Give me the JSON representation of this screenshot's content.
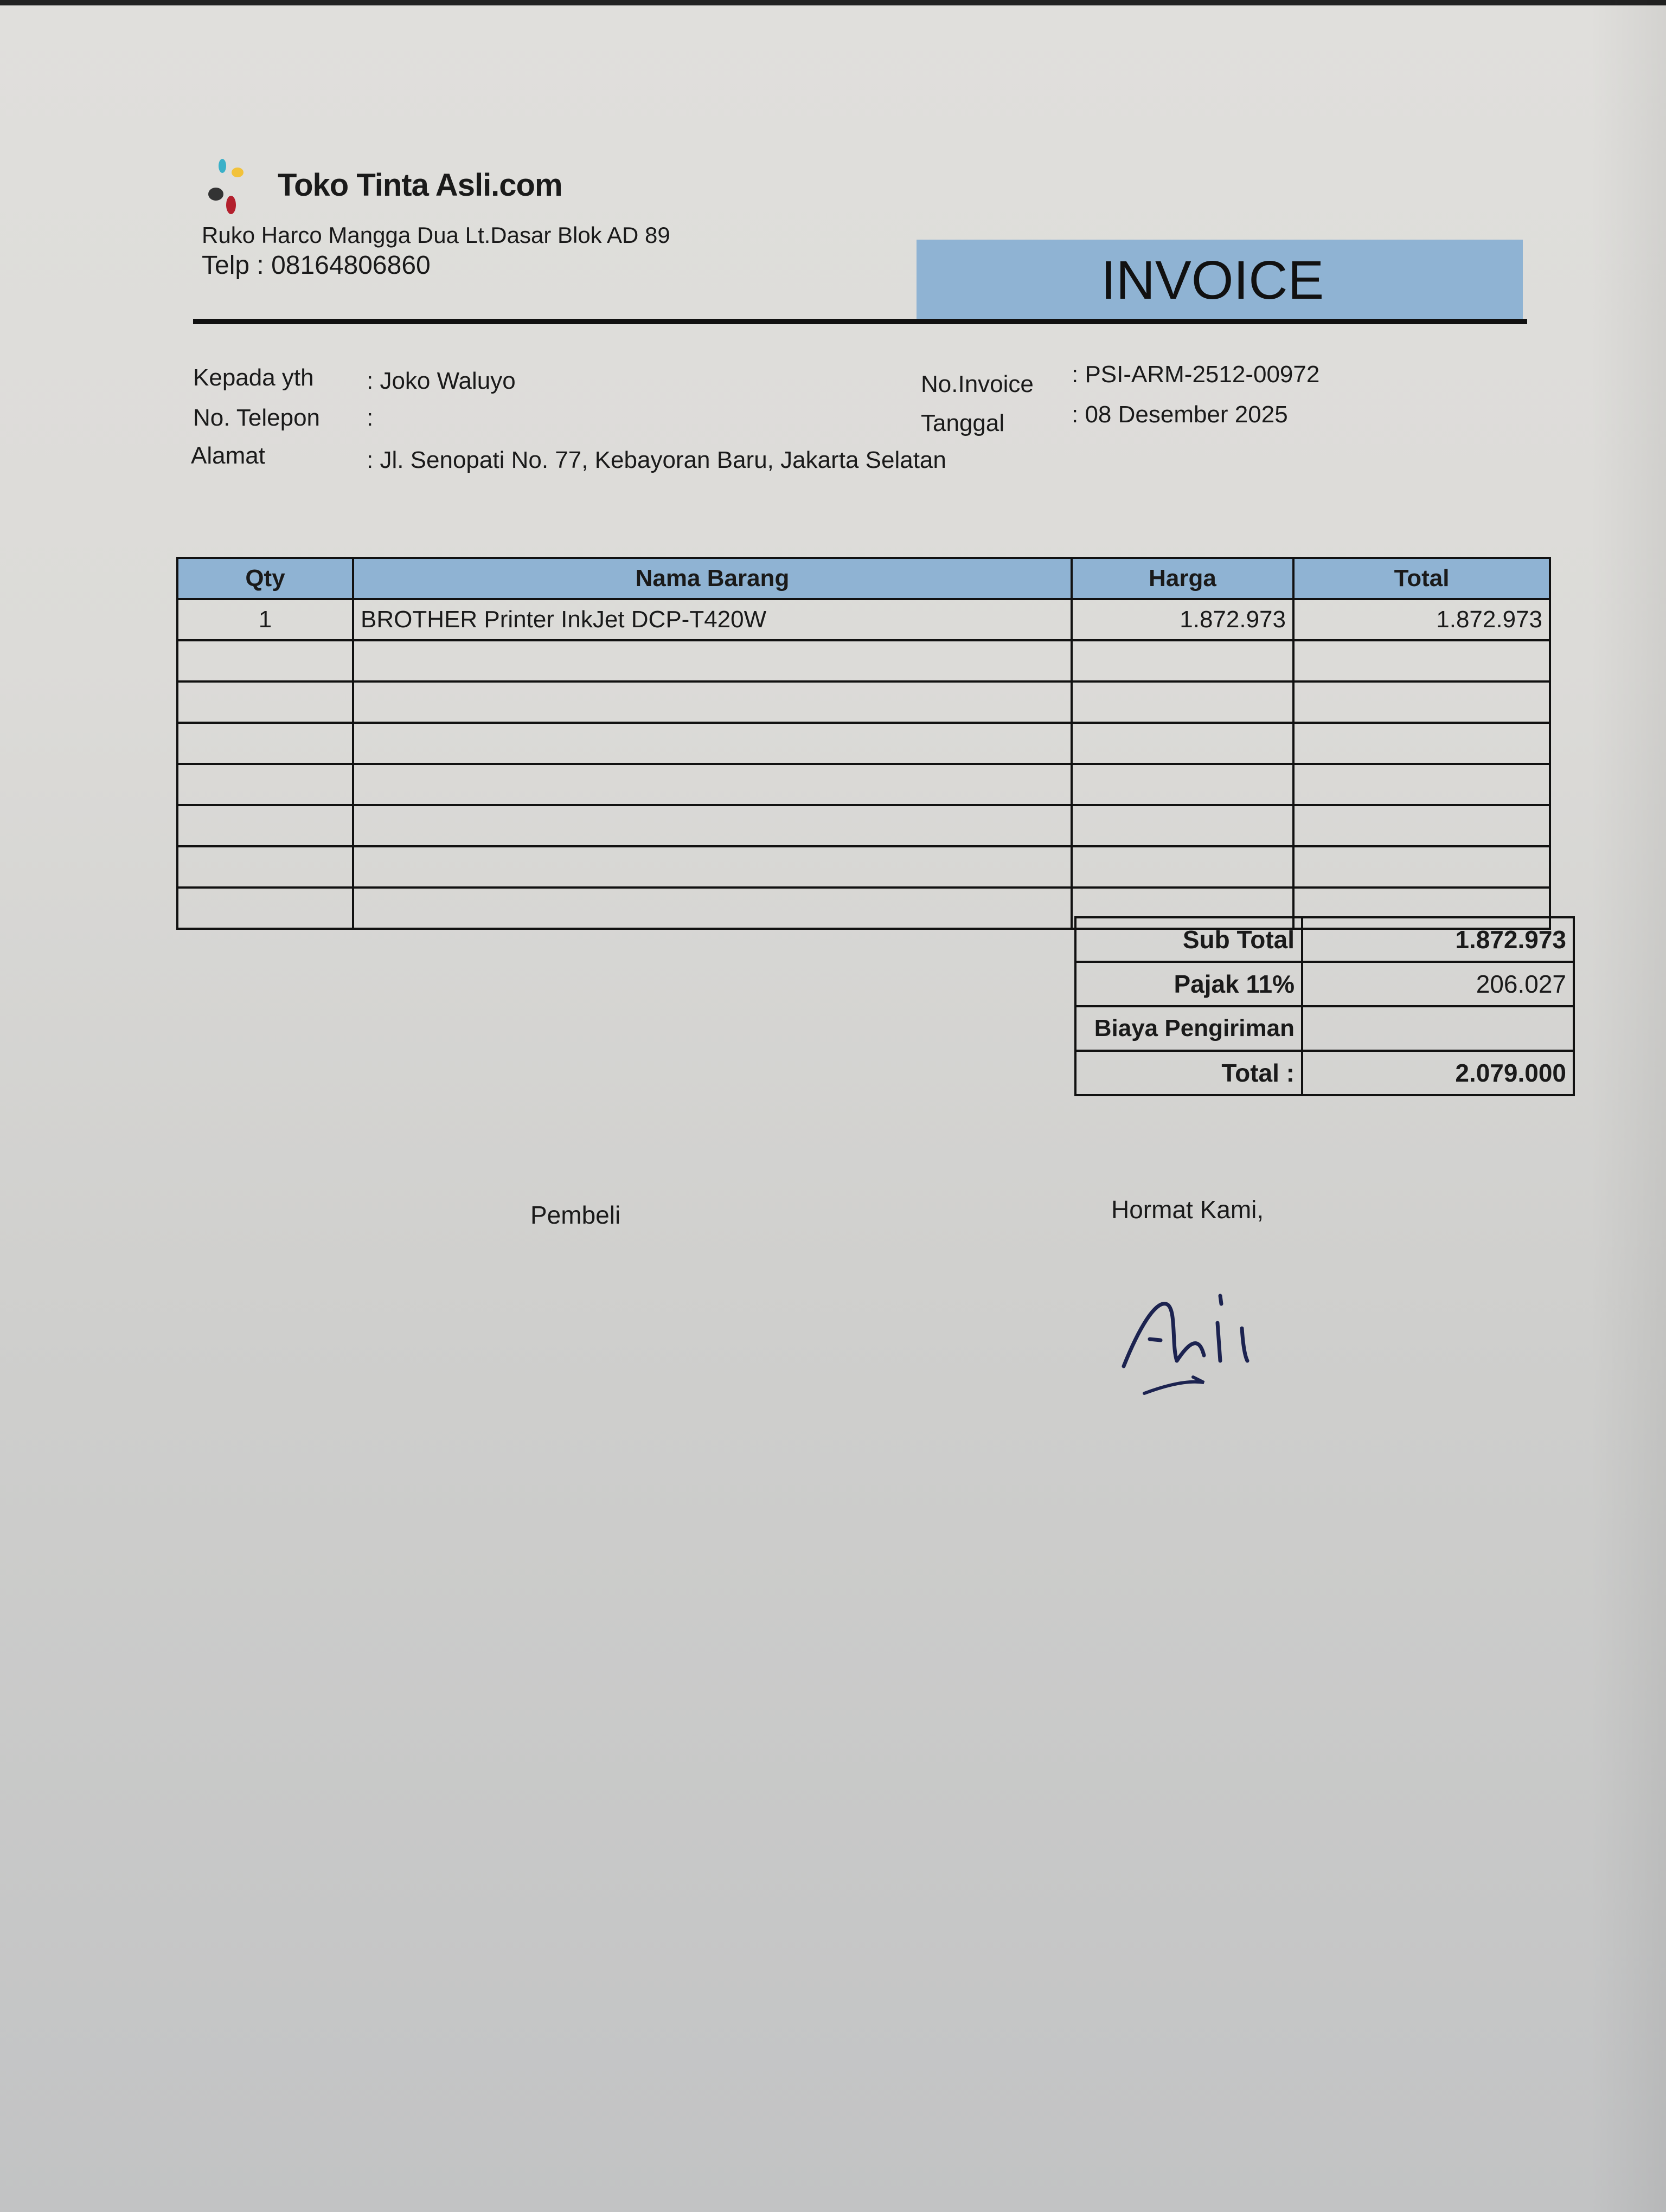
{
  "company": {
    "name": "Toko Tinta Asli.com",
    "address": "Ruko Harco Mangga Dua Lt.Dasar Blok AD 89",
    "phone": "Telp : 08164806860"
  },
  "document_title": "INVOICE",
  "customer": {
    "to_label": "Kepada yth",
    "to_value": ": Joko Waluyo",
    "phone_label": "No. Telepon",
    "phone_value": ":",
    "address_label": "Alamat",
    "address_value": ": Jl. Senopati No. 77, Kebayoran Baru, Jakarta Selatan"
  },
  "invoice": {
    "number_label": "No.Invoice",
    "number_value": ": PSI-ARM-2512-00972",
    "date_label": "Tanggal",
    "date_value": ": 08 Desember 2025"
  },
  "table": {
    "headers": [
      "Qty",
      "Nama Barang",
      "Harga",
      "Total"
    ],
    "rows": [
      {
        "qty": "1",
        "name": "BROTHER Printer InkJet DCP-T420W",
        "price": "1.872.973",
        "total": "1.872.973"
      }
    ]
  },
  "summary": {
    "subtotal_label": "Sub Total",
    "subtotal_value": "1.872.973",
    "tax_label": "Pajak 11%",
    "tax_value": "206.027",
    "shipping_label": "Biaya Pengiriman",
    "shipping_value": "",
    "total_label": "Total :",
    "total_value": "2.079.000"
  },
  "signatures": {
    "buyer": "Pembeli",
    "seller": "Hormat Kami,"
  },
  "colors": {
    "header_fill": "#8fb3d3",
    "ink": "#1a1a1a",
    "signature_ink": "#1c2350"
  }
}
